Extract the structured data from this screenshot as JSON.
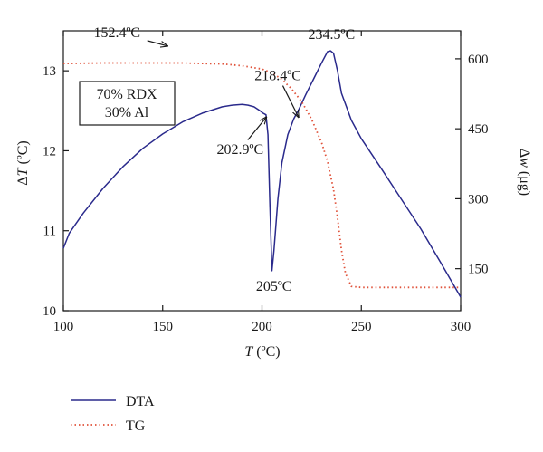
{
  "chart_data": {
    "type": "line",
    "title": "",
    "xlabel": "T (ºC)",
    "xlabel_parts": {
      "var": "T",
      "unit": " (ºC)"
    },
    "ylabel_left": "ΔT (ºC)",
    "ylabel_left_parts": {
      "delta": "Δ",
      "var": "T",
      "unit": " (ºC)"
    },
    "ylabel_right": "Δw (μg)",
    "ylabel_right_parts": {
      "delta": "Δ",
      "var": "w",
      "unit": " (μg)"
    },
    "xlim": [
      100,
      300
    ],
    "ylim_left": [
      10,
      13.5
    ],
    "ylim_right": [
      60,
      660
    ],
    "x_ticks": [
      "100",
      "150",
      "200",
      "250",
      "300"
    ],
    "y_left_ticks": [
      "10",
      "11",
      "12",
      "13"
    ],
    "y_right_ticks": [
      "150",
      "300",
      "450",
      "600"
    ],
    "grid": false,
    "legend_position": "bottom-left",
    "sample_box": {
      "line1": "70% RDX",
      "line2": "30% Al"
    },
    "series": [
      {
        "name": "DTA",
        "color": "#2a2a8c",
        "style": "solid",
        "axis": "left",
        "x": [
          100,
          103,
          110,
          120,
          130,
          140,
          150,
          160,
          170,
          180,
          185,
          190,
          193,
          196,
          199,
          200.5,
          202,
          203,
          204,
          205,
          206,
          208,
          210,
          213,
          216,
          218.4,
          222,
          226,
          230,
          233,
          234.5,
          236,
          238,
          240,
          245,
          250,
          260,
          270,
          280,
          290,
          300
        ],
        "y": [
          10.78,
          10.97,
          11.22,
          11.53,
          11.8,
          12.03,
          12.21,
          12.36,
          12.47,
          12.55,
          12.57,
          12.58,
          12.57,
          12.55,
          12.5,
          12.47,
          12.45,
          12.2,
          11.3,
          10.5,
          10.75,
          11.4,
          11.85,
          12.2,
          12.4,
          12.51,
          12.7,
          12.9,
          13.1,
          13.24,
          13.25,
          13.22,
          13.0,
          12.72,
          12.38,
          12.15,
          11.78,
          11.4,
          11.02,
          10.6,
          10.17
        ]
      },
      {
        "name": "TG",
        "color": "#e0523a",
        "style": "dotted",
        "axis": "right",
        "x": [
          100,
          120,
          140,
          160,
          170,
          180,
          190,
          200,
          205,
          210,
          215,
          220,
          225,
          230,
          233,
          236,
          238,
          240,
          242,
          245,
          250,
          260,
          280,
          300
        ],
        "y": [
          590,
          591,
          591,
          591,
          590,
          589,
          585,
          578,
          570,
          556,
          535,
          508,
          470,
          420,
          380,
          320,
          260,
          190,
          140,
          112,
          110,
          110,
          110,
          110
        ]
      }
    ],
    "annotations": [
      {
        "text": "152.4ºC",
        "x": 152.4,
        "y": 13.31,
        "tx": 127,
        "ty": 13.42,
        "arrow": true
      },
      {
        "text": "218.4ºC",
        "x": 218.4,
        "y": 12.42,
        "tx": 208,
        "ty": 12.88,
        "arrow": true
      },
      {
        "text": "234.5ºC",
        "x": 234.5,
        "y": 13.25,
        "tx": 235,
        "ty": 13.4,
        "arrow": false
      },
      {
        "text": "202.9ºC",
        "x": 202.2,
        "y": 12.42,
        "tx": 189,
        "ty": 11.96,
        "arrow": true
      },
      {
        "text": "205ºC",
        "x": 205,
        "y": 10.5,
        "tx": 206,
        "ty": 10.25,
        "arrow": false
      }
    ]
  }
}
